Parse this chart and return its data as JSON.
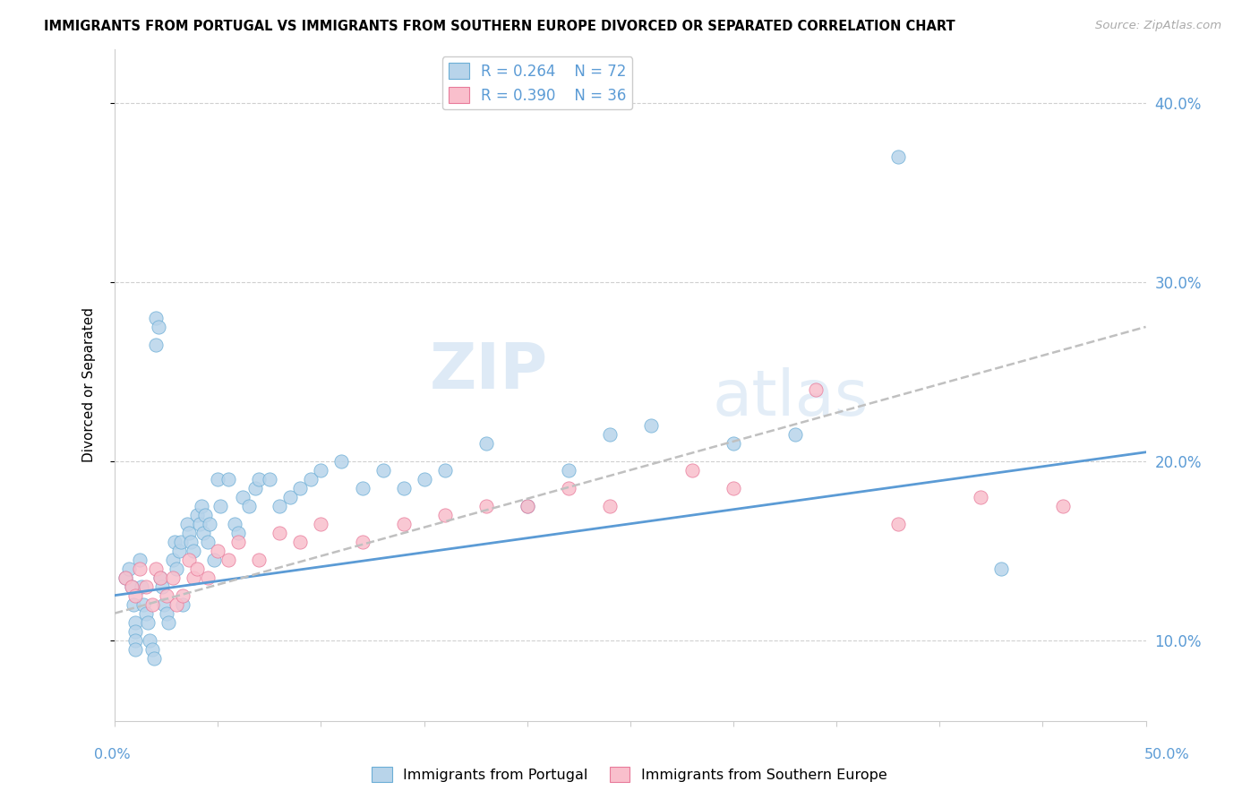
{
  "title": "IMMIGRANTS FROM PORTUGAL VS IMMIGRANTS FROM SOUTHERN EUROPE DIVORCED OR SEPARATED CORRELATION CHART",
  "source": "Source: ZipAtlas.com",
  "ylabel": "Divorced or Separated",
  "yticks": [
    0.1,
    0.2,
    0.3,
    0.4
  ],
  "ytick_labels": [
    "10.0%",
    "20.0%",
    "30.0%",
    "40.0%"
  ],
  "xlim": [
    0.0,
    0.5
  ],
  "ylim": [
    0.055,
    0.43
  ],
  "series1_label": "Immigrants from Portugal",
  "series1_color": "#b8d4ea",
  "series1_edge": "#6baed6",
  "series1_R": "0.264",
  "series1_N": "72",
  "series2_label": "Immigrants from Southern Europe",
  "series2_color": "#f9bfcc",
  "series2_edge": "#e87a9a",
  "series2_R": "0.390",
  "series2_N": "36",
  "watermark": "ZIPatlas",
  "trendline1_color": "#5b9bd5",
  "trendline1_style": "-",
  "trendline2_color": "#c0c0c0",
  "trendline2_style": "--",
  "grid_color": "#d0d0d0",
  "background_color": "#ffffff",
  "series1_x": [
    0.005,
    0.007,
    0.008,
    0.009,
    0.01,
    0.01,
    0.01,
    0.01,
    0.012,
    0.013,
    0.014,
    0.015,
    0.016,
    0.017,
    0.018,
    0.019,
    0.02,
    0.02,
    0.021,
    0.022,
    0.023,
    0.024,
    0.025,
    0.026,
    0.028,
    0.029,
    0.03,
    0.031,
    0.032,
    0.033,
    0.035,
    0.036,
    0.037,
    0.038,
    0.04,
    0.041,
    0.042,
    0.043,
    0.044,
    0.045,
    0.046,
    0.048,
    0.05,
    0.051,
    0.055,
    0.058,
    0.06,
    0.062,
    0.065,
    0.068,
    0.07,
    0.075,
    0.08,
    0.085,
    0.09,
    0.095,
    0.1,
    0.11,
    0.12,
    0.13,
    0.14,
    0.15,
    0.16,
    0.18,
    0.2,
    0.22,
    0.24,
    0.26,
    0.3,
    0.33,
    0.38,
    0.43
  ],
  "series1_y": [
    0.135,
    0.14,
    0.13,
    0.12,
    0.11,
    0.105,
    0.1,
    0.095,
    0.145,
    0.13,
    0.12,
    0.115,
    0.11,
    0.1,
    0.095,
    0.09,
    0.28,
    0.265,
    0.275,
    0.135,
    0.13,
    0.12,
    0.115,
    0.11,
    0.145,
    0.155,
    0.14,
    0.15,
    0.155,
    0.12,
    0.165,
    0.16,
    0.155,
    0.15,
    0.17,
    0.165,
    0.175,
    0.16,
    0.17,
    0.155,
    0.165,
    0.145,
    0.19,
    0.175,
    0.19,
    0.165,
    0.16,
    0.18,
    0.175,
    0.185,
    0.19,
    0.19,
    0.175,
    0.18,
    0.185,
    0.19,
    0.195,
    0.2,
    0.185,
    0.195,
    0.185,
    0.19,
    0.195,
    0.21,
    0.175,
    0.195,
    0.215,
    0.22,
    0.21,
    0.215,
    0.37,
    0.14
  ],
  "series2_x": [
    0.005,
    0.008,
    0.01,
    0.012,
    0.015,
    0.018,
    0.02,
    0.022,
    0.025,
    0.028,
    0.03,
    0.033,
    0.036,
    0.038,
    0.04,
    0.045,
    0.05,
    0.055,
    0.06,
    0.07,
    0.08,
    0.09,
    0.1,
    0.12,
    0.14,
    0.16,
    0.18,
    0.2,
    0.22,
    0.24,
    0.28,
    0.3,
    0.34,
    0.38,
    0.42,
    0.46
  ],
  "series2_y": [
    0.135,
    0.13,
    0.125,
    0.14,
    0.13,
    0.12,
    0.14,
    0.135,
    0.125,
    0.135,
    0.12,
    0.125,
    0.145,
    0.135,
    0.14,
    0.135,
    0.15,
    0.145,
    0.155,
    0.145,
    0.16,
    0.155,
    0.165,
    0.155,
    0.165,
    0.17,
    0.175,
    0.175,
    0.185,
    0.175,
    0.195,
    0.185,
    0.24,
    0.165,
    0.18,
    0.175
  ],
  "trendline1_x0": 0.0,
  "trendline1_x1": 0.5,
  "trendline1_y0": 0.125,
  "trendline1_y1": 0.205,
  "trendline2_x0": 0.0,
  "trendline2_x1": 0.5,
  "trendline2_y0": 0.115,
  "trendline2_y1": 0.275
}
